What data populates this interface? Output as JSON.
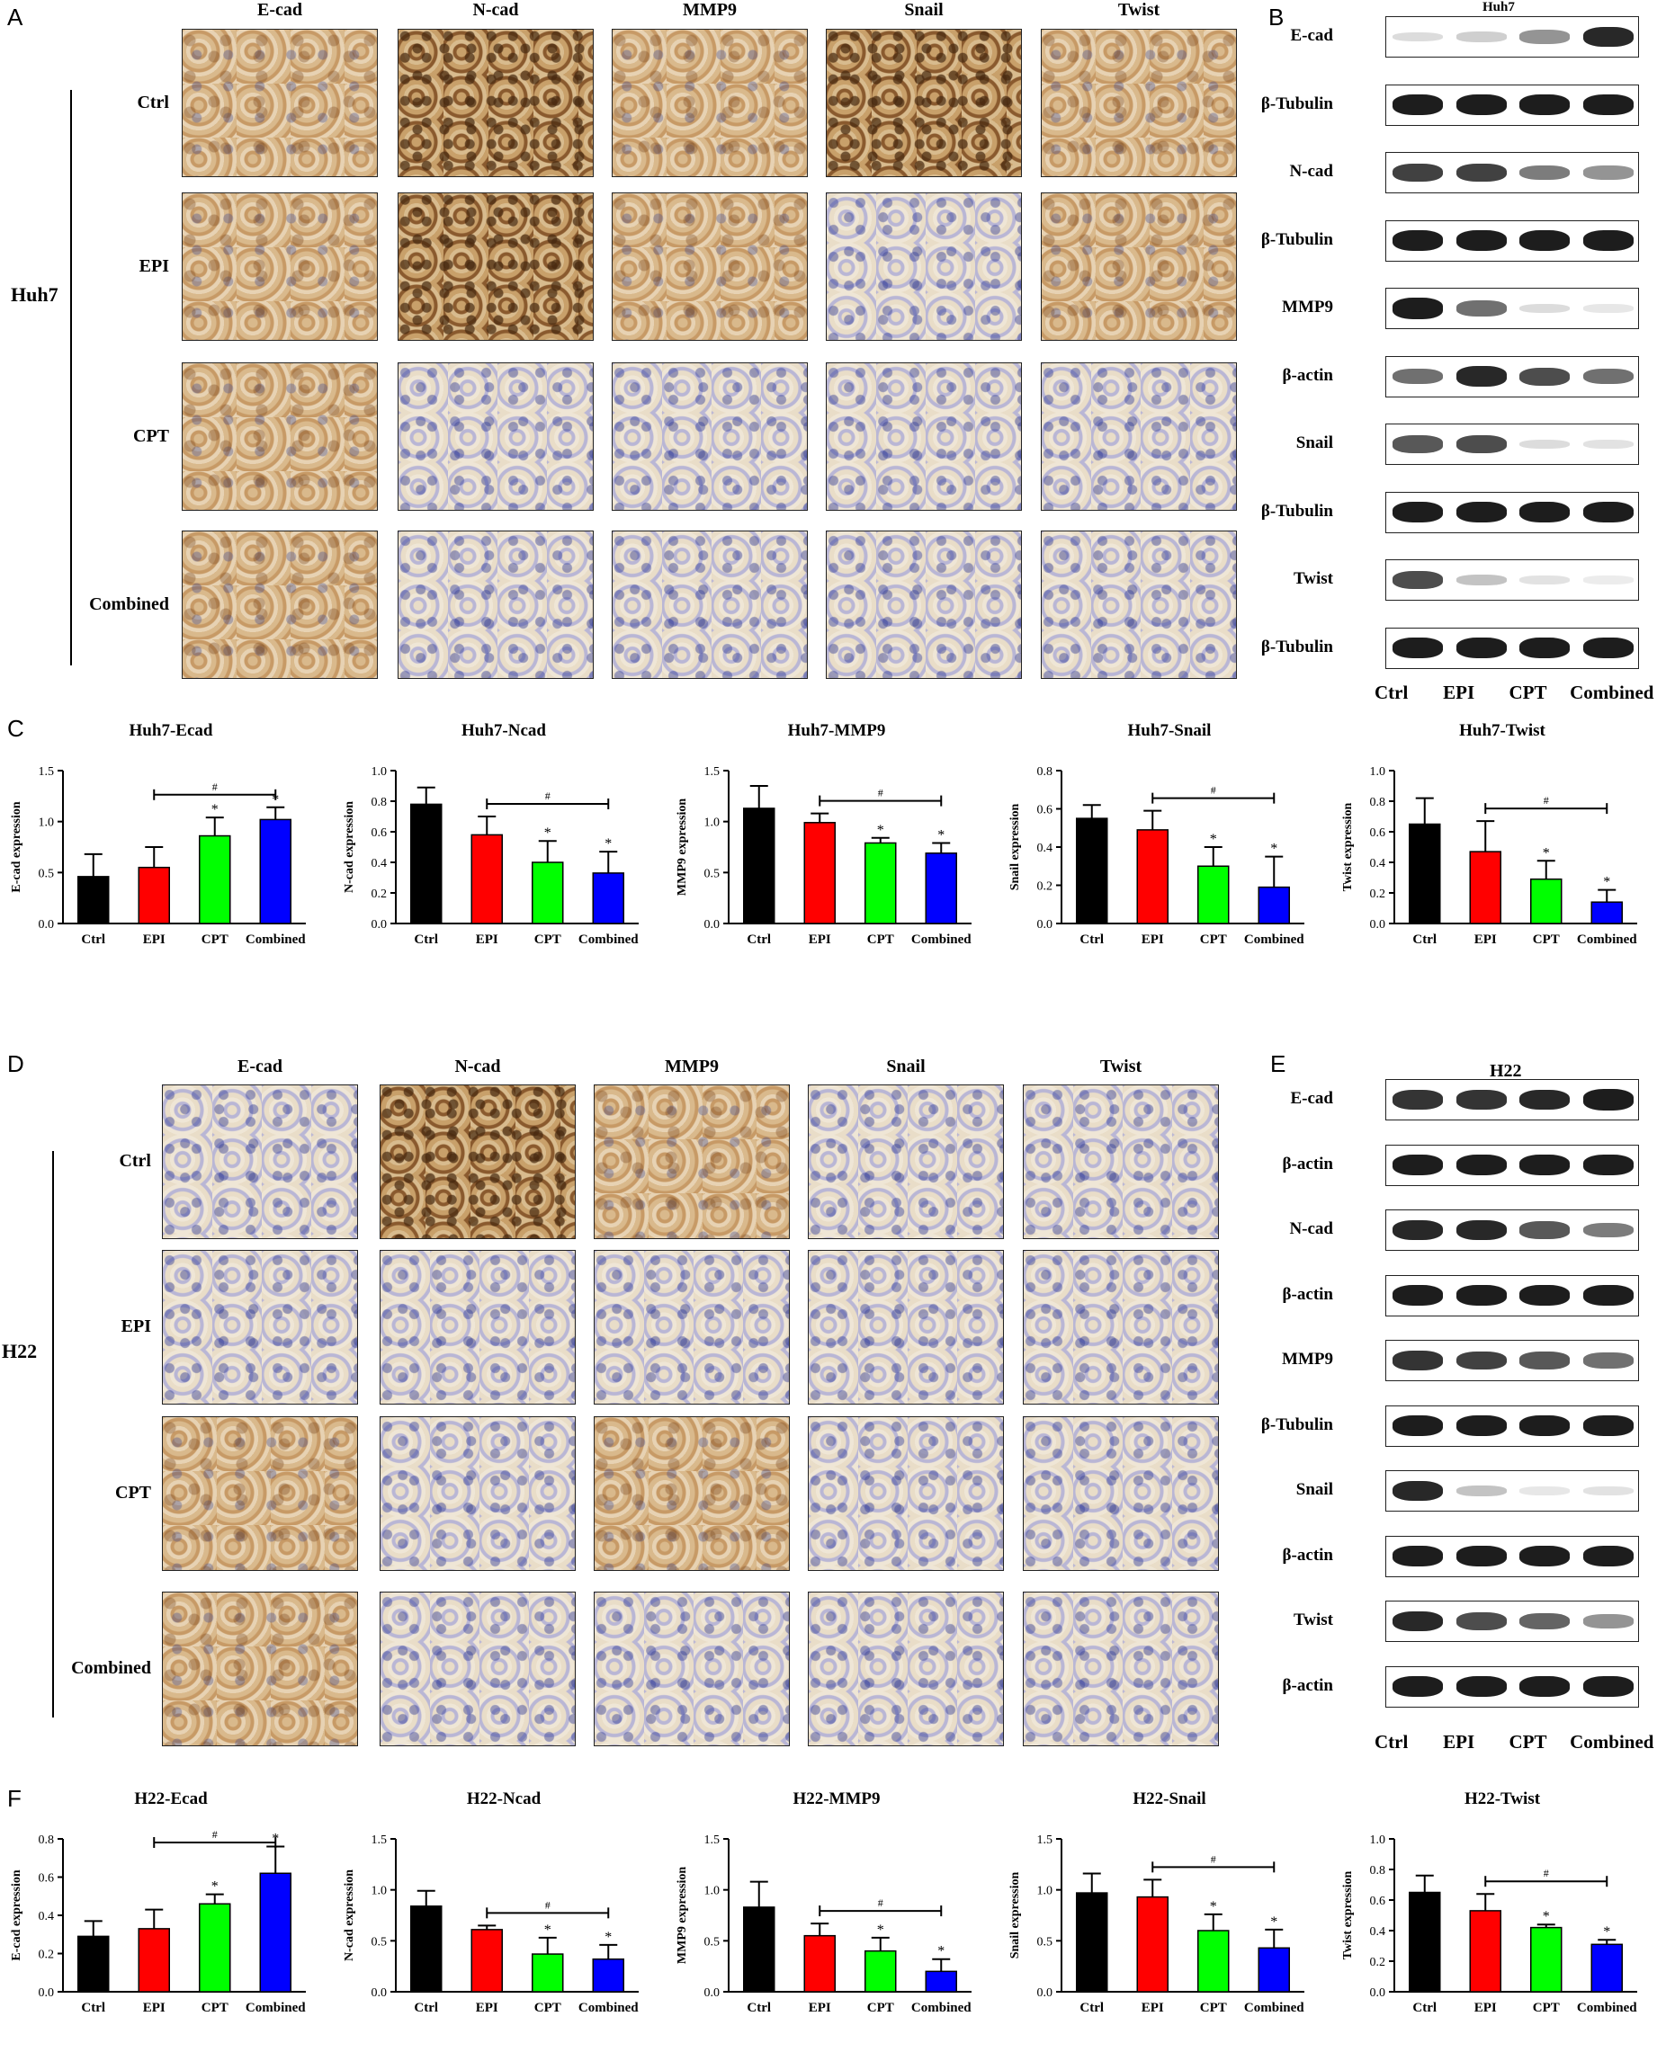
{
  "panels": {
    "A": "A",
    "B": "B",
    "C": "C",
    "D": "D",
    "E": "E",
    "F": "F"
  },
  "ihc_markers": [
    "E-cad",
    "N-cad",
    "MMP9",
    "Snail",
    "Twist"
  ],
  "groups": [
    "Ctrl",
    "EPI",
    "CPT",
    "Combined"
  ],
  "huh7": {
    "cell_line": "Huh7",
    "blot_title": "Huh7",
    "blot_rows": [
      "E-cad",
      "β-Tubulin",
      "N-cad",
      "β-Tubulin",
      "MMP9",
      "β-actin",
      "Snail",
      "β-Tubulin",
      "Twist",
      "β-Tubulin"
    ],
    "band_intensity": [
      [
        0.15,
        0.2,
        0.45,
        0.9
      ],
      [
        0.95,
        0.95,
        0.95,
        0.95
      ],
      [
        0.8,
        0.8,
        0.55,
        0.45
      ],
      [
        0.95,
        0.95,
        0.95,
        0.95
      ],
      [
        0.95,
        0.6,
        0.15,
        0.1
      ],
      [
        0.6,
        0.9,
        0.75,
        0.6
      ],
      [
        0.7,
        0.75,
        0.15,
        0.12
      ],
      [
        0.95,
        0.95,
        0.95,
        0.95
      ],
      [
        0.75,
        0.25,
        0.12,
        0.08
      ],
      [
        0.95,
        0.95,
        0.95,
        0.95
      ]
    ]
  },
  "h22": {
    "cell_line": "H22",
    "blot_title": "H22",
    "blot_rows": [
      "E-cad",
      "β-actin",
      "N-cad",
      "β-actin",
      "MMP9",
      "β-Tubulin",
      "Snail",
      "β-actin",
      "Twist",
      "β-actin"
    ],
    "band_intensity": [
      [
        0.85,
        0.85,
        0.9,
        0.95
      ],
      [
        0.95,
        0.95,
        0.95,
        0.95
      ],
      [
        0.9,
        0.9,
        0.7,
        0.55
      ],
      [
        0.95,
        0.95,
        0.95,
        0.95
      ],
      [
        0.85,
        0.8,
        0.7,
        0.6
      ],
      [
        0.95,
        0.95,
        0.95,
        0.95
      ],
      [
        0.9,
        0.25,
        0.1,
        0.12
      ],
      [
        0.95,
        0.95,
        0.95,
        0.95
      ],
      [
        0.9,
        0.75,
        0.65,
        0.45
      ],
      [
        0.95,
        0.95,
        0.95,
        0.95
      ]
    ]
  },
  "colors": {
    "Ctrl": "#000000",
    "EPI": "#ff0000",
    "CPT": "#00ff00",
    "Combined": "#0000ff"
  },
  "chart_data": [
    {
      "type": "bar",
      "title": "Huh7-Ecad",
      "ylabel": "E-cad expression",
      "categories": [
        "Ctrl",
        "EPI",
        "CPT",
        "Combined"
      ],
      "values": [
        0.46,
        0.55,
        0.86,
        1.02
      ],
      "errors": [
        0.22,
        0.2,
        0.18,
        0.12
      ],
      "ylim": [
        0,
        1.5
      ],
      "yticks": [
        0.0,
        0.5,
        1.0,
        1.5
      ],
      "star": [
        false,
        false,
        true,
        true
      ],
      "bracket": [
        1,
        3
      ]
    },
    {
      "type": "bar",
      "title": "Huh7-Ncad",
      "ylabel": "N-cad expression",
      "categories": [
        "Ctrl",
        "EPI",
        "CPT",
        "Combined"
      ],
      "values": [
        0.78,
        0.58,
        0.4,
        0.33
      ],
      "errors": [
        0.11,
        0.12,
        0.14,
        0.14
      ],
      "ylim": [
        0,
        1.0
      ],
      "yticks": [
        0.0,
        0.2,
        0.4,
        0.6,
        0.8,
        1.0
      ],
      "star": [
        false,
        false,
        true,
        true
      ],
      "bracket": [
        1,
        3
      ]
    },
    {
      "type": "bar",
      "title": "Huh7-MMP9",
      "ylabel": "MMP9 expression",
      "categories": [
        "Ctrl",
        "EPI",
        "CPT",
        "Combined"
      ],
      "values": [
        1.13,
        0.99,
        0.79,
        0.69
      ],
      "errors": [
        0.22,
        0.09,
        0.05,
        0.1
      ],
      "ylim": [
        0,
        1.5
      ],
      "yticks": [
        0.0,
        0.5,
        1.0,
        1.5
      ],
      "star": [
        false,
        false,
        true,
        true
      ],
      "bracket": [
        1,
        3
      ]
    },
    {
      "type": "bar",
      "title": "Huh7-Snail",
      "ylabel": "Snail expression",
      "categories": [
        "Ctrl",
        "EPI",
        "CPT",
        "Combined"
      ],
      "values": [
        0.55,
        0.49,
        0.3,
        0.19
      ],
      "errors": [
        0.07,
        0.1,
        0.1,
        0.16
      ],
      "ylim": [
        0,
        0.8
      ],
      "yticks": [
        0.0,
        0.2,
        0.4,
        0.6,
        0.8
      ],
      "star": [
        false,
        false,
        true,
        true
      ],
      "bracket": [
        1,
        3
      ]
    },
    {
      "type": "bar",
      "title": "Huh7-Twist",
      "ylabel": "Twist expression",
      "categories": [
        "Ctrl",
        "EPI",
        "CPT",
        "Combined"
      ],
      "values": [
        0.65,
        0.47,
        0.29,
        0.14
      ],
      "errors": [
        0.17,
        0.2,
        0.12,
        0.08
      ],
      "ylim": [
        0,
        1.0
      ],
      "yticks": [
        0.0,
        0.2,
        0.4,
        0.6,
        0.8,
        1.0
      ],
      "star": [
        false,
        false,
        true,
        true
      ],
      "bracket": [
        1,
        3
      ]
    },
    {
      "type": "bar",
      "title": "H22-Ecad",
      "ylabel": "E-cad expression",
      "categories": [
        "Ctrl",
        "EPI",
        "CPT",
        "Combined"
      ],
      "values": [
        0.29,
        0.33,
        0.46,
        0.62
      ],
      "errors": [
        0.08,
        0.1,
        0.05,
        0.14
      ],
      "ylim": [
        0,
        0.8
      ],
      "yticks": [
        0.0,
        0.2,
        0.4,
        0.6,
        0.8
      ],
      "star": [
        false,
        false,
        true,
        true
      ],
      "bracket": [
        1,
        3
      ]
    },
    {
      "type": "bar",
      "title": "H22-Ncad",
      "ylabel": "N-cad expression",
      "categories": [
        "Ctrl",
        "EPI",
        "CPT",
        "Combined"
      ],
      "values": [
        0.84,
        0.61,
        0.37,
        0.32
      ],
      "errors": [
        0.15,
        0.04,
        0.16,
        0.14
      ],
      "ylim": [
        0,
        1.5
      ],
      "yticks": [
        0.0,
        0.5,
        1.0,
        1.5
      ],
      "star": [
        false,
        false,
        true,
        true
      ],
      "bracket": [
        1,
        3
      ]
    },
    {
      "type": "bar",
      "title": "H22-MMP9",
      "ylabel": "MMP9 expression",
      "categories": [
        "Ctrl",
        "EPI",
        "CPT",
        "Combined"
      ],
      "values": [
        0.83,
        0.55,
        0.4,
        0.2
      ],
      "errors": [
        0.25,
        0.12,
        0.13,
        0.12
      ],
      "ylim": [
        0,
        1.5
      ],
      "yticks": [
        0.0,
        0.5,
        1.0,
        1.5
      ],
      "star": [
        false,
        false,
        true,
        true
      ],
      "bracket": [
        1,
        3
      ]
    },
    {
      "type": "bar",
      "title": "H22-Snail",
      "ylabel": "Snail expression",
      "categories": [
        "Ctrl",
        "EPI",
        "CPT",
        "Combined"
      ],
      "values": [
        0.97,
        0.93,
        0.6,
        0.43
      ],
      "errors": [
        0.19,
        0.17,
        0.16,
        0.18
      ],
      "ylim": [
        0,
        1.5
      ],
      "yticks": [
        0.0,
        0.5,
        1.0,
        1.5
      ],
      "star": [
        false,
        false,
        true,
        true
      ],
      "bracket": [
        1,
        3
      ]
    },
    {
      "type": "bar",
      "title": "H22-Twist",
      "ylabel": "Twist expression",
      "categories": [
        "Ctrl",
        "EPI",
        "CPT",
        "Combined"
      ],
      "values": [
        0.65,
        0.53,
        0.42,
        0.31
      ],
      "errors": [
        0.11,
        0.11,
        0.02,
        0.03
      ],
      "ylim": [
        0,
        1.0
      ],
      "yticks": [
        0.0,
        0.2,
        0.4,
        0.6,
        0.8,
        1.0
      ],
      "star": [
        false,
        false,
        true,
        true
      ],
      "bracket": [
        1,
        3
      ]
    }
  ],
  "stat_marks": {
    "star": "*",
    "hash": "#"
  }
}
